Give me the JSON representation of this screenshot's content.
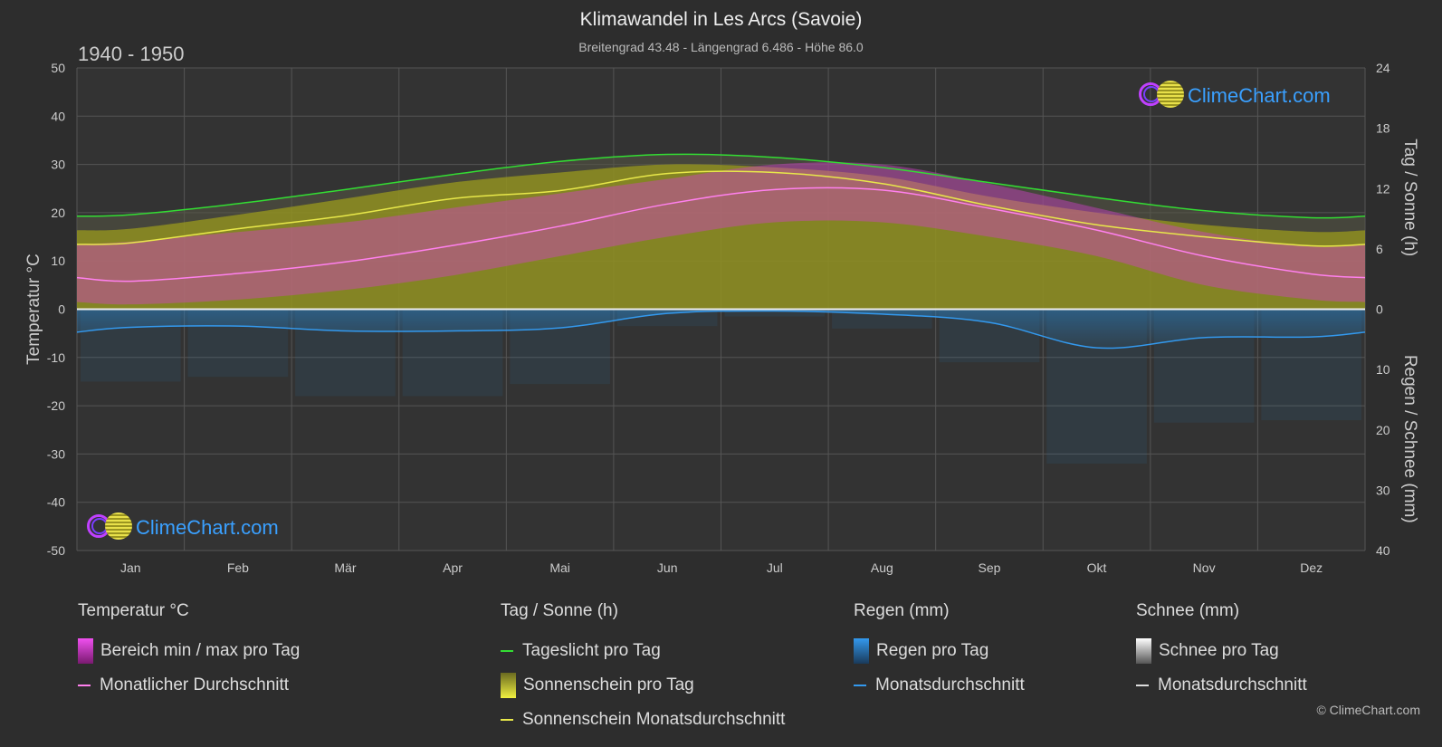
{
  "header": {
    "title": "Klimawandel in Les Arcs (Savoie)",
    "subtitle": "Breitengrad 43.48 - Längengrad 6.486 - Höhe 86.0",
    "period": "1940 - 1950"
  },
  "brand": {
    "name": "ClimeChart.com"
  },
  "copyright": "© ClimeChart.com",
  "colors": {
    "background": "#2d2d2d",
    "daylight": "#33dd33",
    "sunshine_fill": "#9a9a1c",
    "sunshine_line": "#e8e84a",
    "temp_range": "#d040c8",
    "temp_line": "#ff80ee",
    "rain": "#2a7ab8",
    "rain_line": "#3399ee",
    "snow": "#cccccc",
    "grid": "#555555"
  },
  "chart_data": {
    "type": "area",
    "categories": [
      "Jan",
      "Feb",
      "Mär",
      "Apr",
      "Mai",
      "Jun",
      "Jul",
      "Aug",
      "Sep",
      "Okt",
      "Nov",
      "Dez"
    ],
    "axes": {
      "left": {
        "label": "Temperatur °C",
        "range": [
          -50,
          50
        ],
        "ticks": [
          "50",
          "40",
          "30",
          "20",
          "10",
          "0",
          "-10",
          "-20",
          "-30",
          "-40",
          "-50"
        ]
      },
      "right_top": {
        "label": "Tag / Sonne (h)",
        "range": [
          0,
          24
        ],
        "ticks": [
          "24",
          "18",
          "12",
          "6",
          "0"
        ]
      },
      "right_bottom": {
        "label": "Regen / Schnee (mm)",
        "range": [
          0,
          40
        ],
        "ticks": [
          "10",
          "20",
          "30",
          "40"
        ]
      }
    },
    "grid": true,
    "series": [
      {
        "name": "Tageslicht pro Tag",
        "unit": "h",
        "values": [
          9.4,
          10.5,
          11.9,
          13.4,
          14.7,
          15.4,
          15.1,
          14.1,
          12.6,
          11.1,
          9.8,
          9.1
        ]
      },
      {
        "name": "Sonnenschein Monatsdurchschnitt",
        "unit": "h",
        "values": [
          6.6,
          8.0,
          9.3,
          11.0,
          11.8,
          13.5,
          13.6,
          12.5,
          10.3,
          8.4,
          7.2,
          6.3
        ]
      },
      {
        "name": "Sonnenschein pro Tag",
        "unit": "h",
        "values": [
          8.0,
          9.4,
          11.0,
          12.6,
          13.6,
          14.4,
          14.1,
          13.2,
          11.2,
          9.6,
          8.4,
          7.7
        ]
      },
      {
        "name": "Temperatur max",
        "unit": "°C",
        "values": [
          14,
          16,
          18,
          21,
          24,
          27,
          30,
          30,
          26,
          21,
          16,
          13
        ]
      },
      {
        "name": "Temperatur min",
        "unit": "°C",
        "values": [
          1,
          2,
          4,
          7,
          11,
          15,
          18,
          18,
          15,
          11,
          5,
          2
        ]
      },
      {
        "name": "Monatlicher Durchschnitt",
        "unit": "°C",
        "values": [
          5.8,
          7.4,
          9.8,
          13.2,
          17.2,
          21.8,
          24.8,
          24.7,
          20.9,
          16.4,
          11.0,
          7.3
        ]
      },
      {
        "name": "Regen Monatsdurchschnitt",
        "unit": "mm",
        "values": [
          3.0,
          2.8,
          3.6,
          3.6,
          3.1,
          0.7,
          0.3,
          0.8,
          2.2,
          6.4,
          4.7,
          4.6
        ]
      }
    ]
  },
  "legend": {
    "groups": [
      {
        "title": "Temperatur °C",
        "items": [
          {
            "label": "Bereich min / max pro Tag",
            "kind": "box",
            "color": "#d040c8"
          },
          {
            "label": "Monatlicher Durchschnitt",
            "kind": "line",
            "color": "#ff80ee"
          }
        ]
      },
      {
        "title": "Tag / Sonne (h)",
        "items": [
          {
            "label": "Tageslicht pro Tag",
            "kind": "line",
            "color": "#33dd33"
          },
          {
            "label": "Sonnenschein pro Tag",
            "kind": "box",
            "color": "#c8c830"
          },
          {
            "label": "Sonnenschein Monatsdurchschnitt",
            "kind": "line",
            "color": "#e8e84a"
          }
        ]
      },
      {
        "title": "Regen (mm)",
        "items": [
          {
            "label": "Regen pro Tag",
            "kind": "box",
            "color": "#2a7ab8"
          },
          {
            "label": "Monatsdurchschnitt",
            "kind": "line",
            "color": "#3399ee"
          }
        ]
      },
      {
        "title": "Schnee (mm)",
        "items": [
          {
            "label": "Schnee pro Tag",
            "kind": "box",
            "color": "#cccccc"
          },
          {
            "label": "Monatsdurchschnitt",
            "kind": "line",
            "color": "#dddddd"
          }
        ]
      }
    ]
  }
}
